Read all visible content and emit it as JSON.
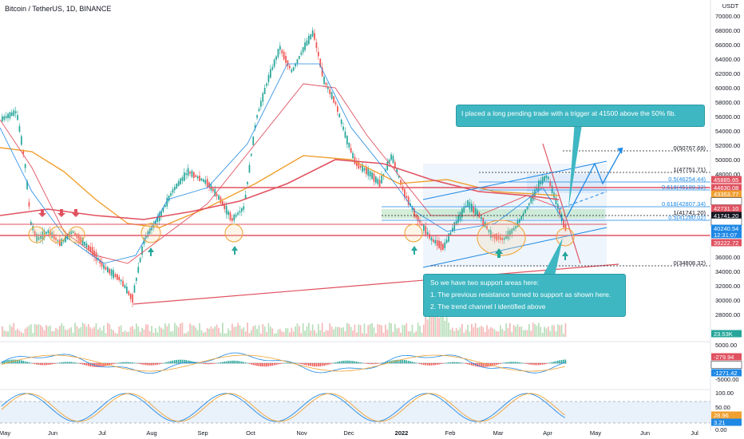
{
  "header": {
    "title": "Bitcoin / TetherUS, 1D, BINANCE"
  },
  "price_axis": {
    "currency": "USDT",
    "ticks": [
      "70000.00",
      "68000.00",
      "66000.00",
      "64000.00",
      "62000.00",
      "60000.00",
      "58000.00",
      "56000.00",
      "54000.00",
      "52000.00",
      "50000.00",
      "48000.00",
      "36000.00",
      "34000.00",
      "32000.00",
      "30000.00",
      "28000.00"
    ],
    "tags": [
      {
        "text": "45885.65",
        "color": "#e05260"
      },
      {
        "text": "44630.08",
        "color": "#e05260"
      },
      {
        "text": "43353.77",
        "color": "#f0a030"
      },
      {
        "text": "43158.31",
        "color": "#ffffff"
      },
      {
        "text": "42731.10",
        "color": "#e05260"
      },
      {
        "text": "41741.20",
        "color": "#131722"
      },
      {
        "text": "40560.56",
        "color": "#ffffff"
      },
      {
        "text": "40240.54",
        "color": "#1e88e5"
      },
      {
        "text": "12:31:07",
        "color": "#1e88e5"
      },
      {
        "text": "39222.72",
        "color": "#e05260"
      },
      {
        "text": "23.53K",
        "color": "#26a69a"
      }
    ]
  },
  "fib_levels": [
    {
      "label": "0(50767.69)",
      "color": "#131722"
    },
    {
      "label": "1(47751.71)",
      "color": "#131722"
    },
    {
      "label": "0.5(46254.44)",
      "color": "#1e88e5"
    },
    {
      "label": "0.618(45189.32)",
      "color": "#1e88e5"
    },
    {
      "label": "0.618(42807.34)",
      "color": "#1e88e5"
    },
    {
      "label": "1(41741.20)",
      "color": "#131722"
    },
    {
      "label": "0.5(41280.02)",
      "color": "#1e88e5"
    },
    {
      "label": "0(34808.32)",
      "color": "#131722"
    }
  ],
  "annotations": {
    "trigger_note": "I placed a long pending trade with a trigger at 41500 above the 50% fib.",
    "support_title": "So we have two support areas here:",
    "support_point1": "1. The previous resistance turned to support as shown here.",
    "support_point2": "2. The trend channel I identified above"
  },
  "macd_axis": {
    "ticks": [
      "5000.00",
      "-5000.00"
    ],
    "tags": [
      {
        "text": "-279.94",
        "color": "#e05260"
      },
      {
        "text": "-991.48",
        "color": "#ffffff"
      },
      {
        "text": "-1271.42",
        "color": "#1e88e5"
      }
    ]
  },
  "stoch_axis": {
    "ticks": [
      "100.00",
      "50.00",
      "0.00"
    ],
    "tags": [
      {
        "text": "28.96",
        "color": "#f0a030"
      },
      {
        "text": "3.21",
        "color": "#1e88e5"
      }
    ]
  },
  "time_axis": [
    "May",
    "Jun",
    "Jul",
    "Aug",
    "Sep",
    "Oct",
    "Nov",
    "Dec",
    "2022",
    "Feb",
    "Mar",
    "Apr",
    "May",
    "Jun",
    "Jul"
  ],
  "colors": {
    "up": "#26a69a",
    "down": "#ef5350",
    "ema_red": "#e05260",
    "ema_orange": "#f0a030",
    "ema_blue": "#1e88e5",
    "note_bg": "#3fb7c2"
  }
}
